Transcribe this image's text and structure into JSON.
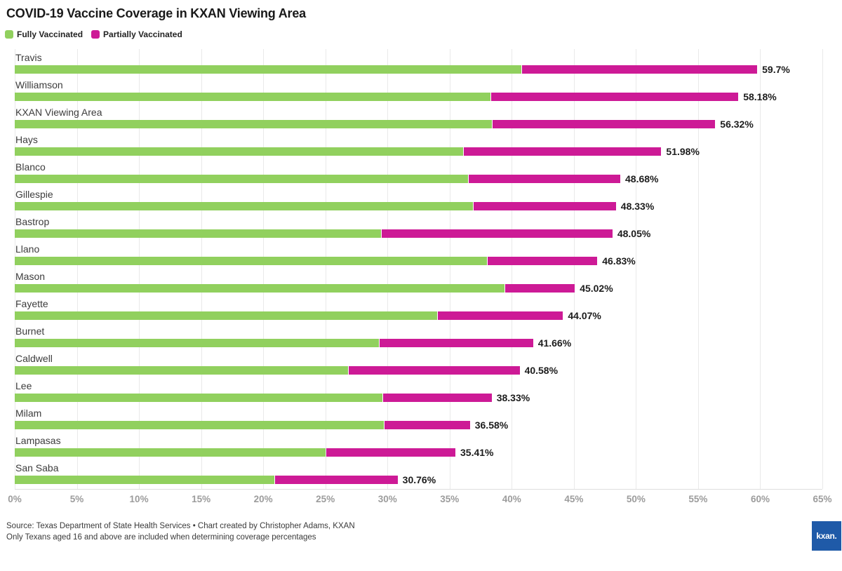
{
  "header": {
    "title": "COVID-19 Vaccine Coverage in KXAN Viewing Area",
    "legend": [
      {
        "label": "Fully Vaccinated",
        "color": "#91d05e"
      },
      {
        "label": "Partially Vaccinated",
        "color": "#cd1a96"
      }
    ]
  },
  "chart_data": {
    "type": "bar",
    "orientation": "horizontal-stacked",
    "title": "COVID-19 Vaccine Coverage in KXAN Viewing Area",
    "categories": [
      "Travis",
      "Williamson",
      "KXAN Viewing Area",
      "Hays",
      "Blanco",
      "Gillespie",
      "Bastrop",
      "Llano",
      "Mason",
      "Fayette",
      "Burnet",
      "Caldwell",
      "Lee",
      "Milam",
      "Lampasas",
      "San Saba"
    ],
    "series": [
      {
        "name": "Fully Vaccinated",
        "color": "#91d05e",
        "values": [
          40.8,
          38.3,
          38.4,
          36.1,
          36.5,
          36.9,
          29.5,
          38.0,
          39.4,
          34.0,
          29.3,
          26.8,
          29.6,
          29.7,
          25.0,
          20.9
        ]
      },
      {
        "name": "Partially Vaccinated",
        "color": "#cd1a96",
        "values": [
          18.9,
          19.88,
          17.92,
          15.88,
          12.18,
          11.43,
          18.55,
          8.83,
          5.62,
          10.07,
          12.36,
          13.78,
          8.73,
          6.88,
          10.41,
          9.86
        ]
      }
    ],
    "totals": [
      59.7,
      58.18,
      56.32,
      51.98,
      48.68,
      48.33,
      48.05,
      46.83,
      45.02,
      44.07,
      41.66,
      40.58,
      38.33,
      36.58,
      35.41,
      30.76
    ],
    "total_labels": [
      "59.7%",
      "58.18%",
      "56.32%",
      "51.98%",
      "48.68%",
      "48.33%",
      "48.05%",
      "46.83%",
      "45.02%",
      "44.07%",
      "41.66%",
      "40.58%",
      "38.33%",
      "36.58%",
      "35.41%",
      "30.76%"
    ],
    "axis": {
      "min": 0,
      "max": 65,
      "tick_values": [
        0,
        5,
        10,
        15,
        20,
        25,
        30,
        35,
        40,
        45,
        50,
        55,
        60,
        65
      ],
      "tick_labels": [
        "0%",
        "5%",
        "10%",
        "15%",
        "20%",
        "25%",
        "30%",
        "35%",
        "40%",
        "45%",
        "50%",
        "55%",
        "60%",
        "65%"
      ],
      "grid": true,
      "grid_color": "#e9e9e9"
    },
    "legend_position": "top-left"
  },
  "footer": {
    "source_line": "Source: Texas Department of State Health Services • Chart created by Christopher Adams, KXAN",
    "note_line": "Only Texans aged 16 and above are included when determining coverage percentages",
    "logo_text": "kxan.",
    "logo_color": "#1f5aa8"
  }
}
